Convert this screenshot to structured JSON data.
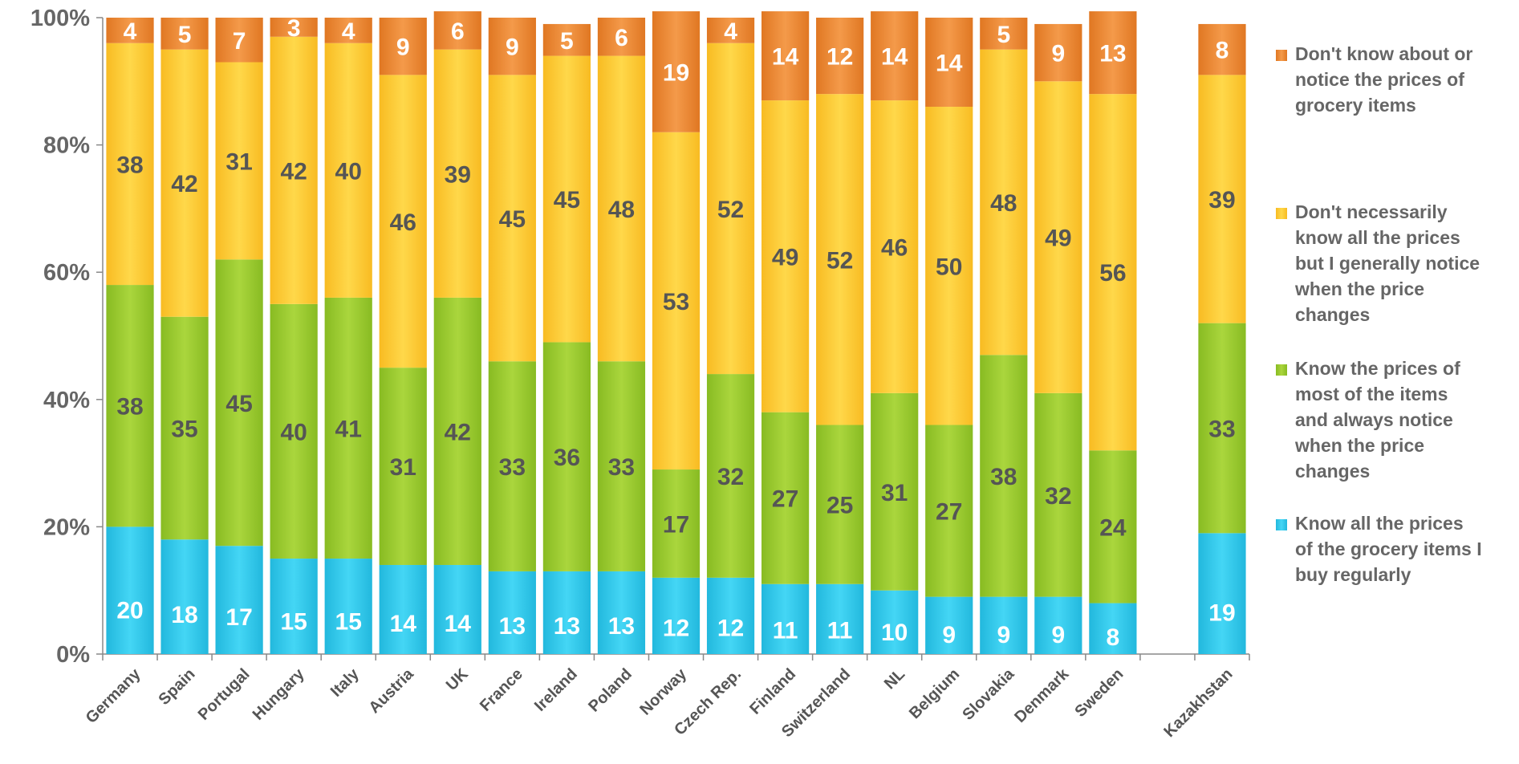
{
  "chart_data": {
    "type": "bar",
    "stacked": true,
    "percent": true,
    "categories": [
      "Germany",
      "Spain",
      "Portugal",
      "Hungary",
      "Italy",
      "Austria",
      "UK",
      "France",
      "Ireland",
      "Poland",
      "Norway",
      "Czech Rep.",
      "Finland",
      "Switzerland",
      "NL",
      "Belgium",
      "Slovakia",
      "Denmark",
      "Sweden",
      "",
      "Kazakhstan"
    ],
    "series": [
      {
        "name": "Know all the prices of the grocery items I buy regularly",
        "color": "#33ccee",
        "label_color": "#ffffff",
        "values": [
          20,
          18,
          17,
          15,
          15,
          14,
          14,
          13,
          13,
          13,
          12,
          12,
          11,
          11,
          10,
          9,
          9,
          9,
          8,
          null,
          19
        ]
      },
      {
        "name": "Know the prices of most of the items and always notice when the price changes",
        "color": "#99cc33",
        "label_color": "#555555",
        "values": [
          38,
          35,
          45,
          40,
          41,
          31,
          42,
          33,
          36,
          33,
          17,
          32,
          27,
          25,
          31,
          27,
          38,
          32,
          24,
          null,
          33
        ]
      },
      {
        "name": "Don't necessarily know all the prices but I generally notice when the price changes",
        "color": "#ffcc33",
        "label_color": "#555555",
        "values": [
          38,
          42,
          31,
          42,
          40,
          46,
          39,
          45,
          45,
          48,
          53,
          52,
          49,
          52,
          46,
          50,
          48,
          49,
          56,
          null,
          39
        ]
      },
      {
        "name": "Don't know about or notice the prices of grocery items",
        "color": "#ee8833",
        "label_color": "#ffffff",
        "values": [
          4,
          5,
          7,
          3,
          4,
          9,
          6,
          9,
          5,
          6,
          19,
          4,
          14,
          12,
          14,
          14,
          5,
          9,
          13,
          null,
          8
        ]
      }
    ],
    "yticks": [
      "0%",
      "20%",
      "40%",
      "60%",
      "80%",
      "100%"
    ],
    "ylim": [
      0,
      100
    ],
    "legend_position": "right",
    "grid": false
  }
}
